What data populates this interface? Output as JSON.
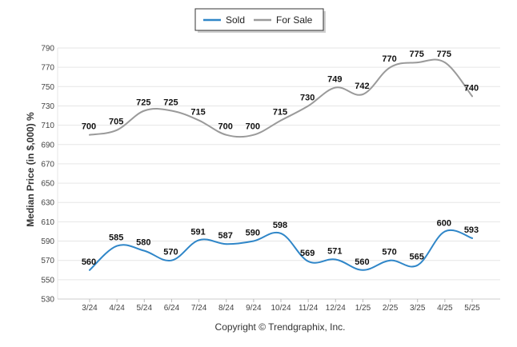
{
  "chart_data": {
    "type": "line",
    "title": "",
    "xlabel": "",
    "ylabel": "Median Price (in $,000) %",
    "categories": [
      "3/24",
      "4/24",
      "5/24",
      "6/24",
      "7/24",
      "8/24",
      "9/24",
      "10/24",
      "11/24",
      "12/24",
      "1/25",
      "2/25",
      "3/25",
      "4/25",
      "5/25"
    ],
    "series": [
      {
        "name": "Sold",
        "color": "#2f86c8",
        "values": [
          560,
          585,
          580,
          570,
          591,
          587,
          590,
          598,
          569,
          571,
          560,
          570,
          565,
          600,
          593
        ]
      },
      {
        "name": "For Sale",
        "color": "#9a9a9a",
        "values": [
          700,
          705,
          725,
          725,
          715,
          700,
          700,
          715,
          730,
          749,
          742,
          770,
          775,
          775,
          740
        ]
      }
    ],
    "ylim": [
      530,
      790
    ],
    "yticks": [
      530,
      550,
      570,
      590,
      610,
      630,
      650,
      670,
      690,
      710,
      730,
      750,
      770,
      790
    ],
    "grid": true,
    "legend_position": "top-center",
    "credit": "Copyright © Trendgraphix, Inc."
  }
}
